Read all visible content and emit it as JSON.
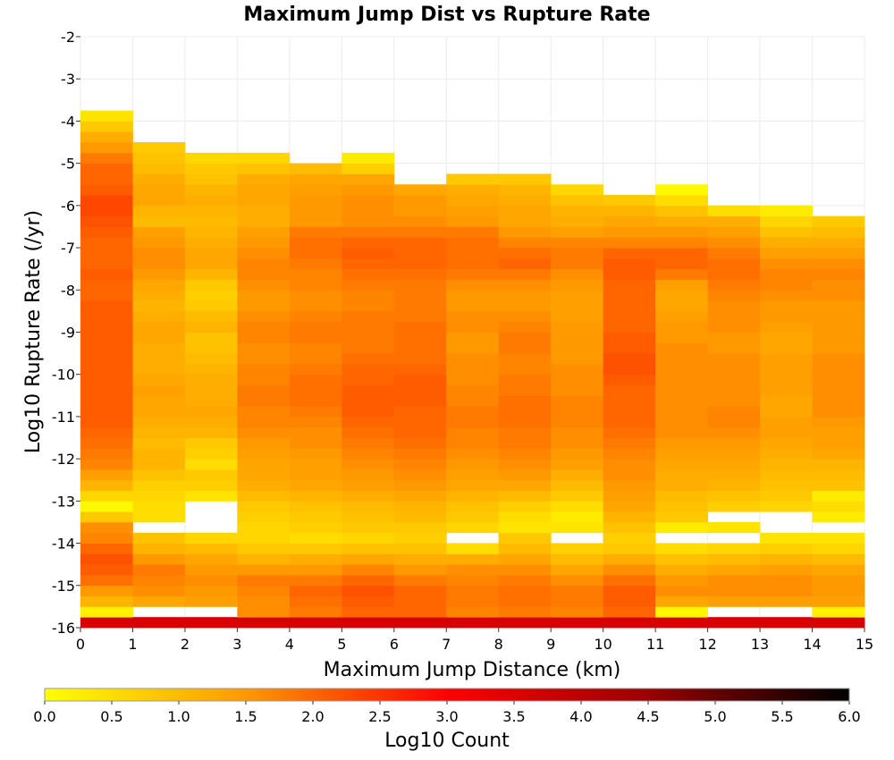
{
  "chart_data": {
    "type": "heatmap",
    "title": "Maximum Jump Dist vs Rupture Rate",
    "xlabel": "Maximum Jump Distance (km)",
    "ylabel": "Log10 Rupture Rate (/yr)",
    "xlim": [
      0,
      15
    ],
    "ylim": [
      -16,
      -2
    ],
    "x_ticks": [
      "0",
      "1",
      "2",
      "3",
      "4",
      "5",
      "6",
      "7",
      "8",
      "9",
      "10",
      "11",
      "12",
      "13",
      "14",
      "15"
    ],
    "y_ticks": [
      "-2",
      "-3",
      "-4",
      "-5",
      "-6",
      "-7",
      "-8",
      "-9",
      "-10",
      "-11",
      "-12",
      "-13",
      "-14",
      "-15",
      "-16"
    ],
    "colorbar": {
      "label": "Log10 Count",
      "range": [
        0,
        6
      ],
      "ticks": [
        "0.0",
        "0.5",
        "1.0",
        "1.5",
        "2.0",
        "2.5",
        "3.0",
        "3.5",
        "4.0",
        "4.5",
        "5.0",
        "5.5",
        "6.0"
      ],
      "colors": [
        "#ffff00",
        "#ff9900",
        "#ff0000",
        "#990000",
        "#000000"
      ]
    },
    "x_bin_width": 1,
    "y_bin_width": 0.25,
    "y_bin_start": -16,
    "columns": [
      {
        "x": 0,
        "values": [
          3.6,
          0.2,
          1.1,
          1.5,
          1.9,
          2.1,
          2.2,
          2.0,
          1.7,
          1.6,
          0.8,
          0.1,
          0.6,
          1.1,
          1.4,
          1.7,
          1.8,
          1.9,
          2.0,
          2.1,
          2.1,
          2.1,
          2.1,
          2.1,
          2.1,
          2.1,
          2.1,
          2.1,
          2.1,
          2.1,
          2.1,
          2.0,
          2.0,
          2.1,
          2.0,
          2.0,
          2.0,
          2.1,
          2.2,
          2.3,
          2.3,
          2.1,
          2.0,
          2.0,
          1.8,
          1.5,
          1.2,
          0.8,
          0.4
        ]
      },
      {
        "x": 1,
        "values": [
          3.6,
          -1,
          1.3,
          1.6,
          1.7,
          1.8,
          1.5,
          1.1,
          0.9,
          -1,
          0.5,
          0.5,
          0.6,
          0.7,
          0.9,
          1.1,
          1.1,
          1.0,
          1.1,
          1.2,
          1.3,
          1.3,
          1.4,
          1.3,
          1.2,
          1.2,
          1.2,
          1.3,
          1.3,
          1.2,
          1.1,
          1.2,
          1.3,
          1.5,
          1.6,
          1.6,
          1.5,
          1.4,
          1.0,
          1.1,
          1.3,
          1.3,
          1.2,
          1.0,
          0.9,
          0.8
        ]
      },
      {
        "x": 2,
        "values": [
          3.6,
          -1,
          1.4,
          1.5,
          1.6,
          1.5,
          1.3,
          1.0,
          0.6,
          -1,
          -1,
          -1,
          0.4,
          0.7,
          0.8,
          0.5,
          0.7,
          0.8,
          1.1,
          1.2,
          1.3,
          1.2,
          1.2,
          1.2,
          1.1,
          1.0,
          0.9,
          0.9,
          1.1,
          1.0,
          0.8,
          0.7,
          0.8,
          1.1,
          1.3,
          1.3,
          1.2,
          1.1,
          1.0,
          1.1,
          1.2,
          1.1,
          0.9,
          0.8,
          0.6
        ]
      },
      {
        "x": 3,
        "values": [
          3.6,
          1.6,
          1.6,
          1.7,
          1.8,
          1.5,
          1.1,
          0.8,
          0.6,
          0.6,
          0.7,
          0.8,
          1.0,
          1.2,
          1.3,
          1.3,
          1.4,
          1.5,
          1.6,
          1.7,
          1.7,
          1.8,
          1.8,
          1.7,
          1.7,
          1.6,
          1.6,
          1.7,
          1.7,
          1.6,
          1.5,
          1.5,
          1.6,
          1.7,
          1.7,
          1.6,
          1.5,
          1.4,
          1.2,
          1.2,
          1.3,
          1.3,
          1.2,
          0.9,
          0.6
        ]
      },
      {
        "x": 4,
        "values": [
          3.6,
          1.8,
          1.9,
          2.0,
          1.8,
          1.5,
          1.2,
          0.8,
          0.5,
          0.7,
          0.8,
          0.9,
          1.1,
          1.3,
          1.4,
          1.4,
          1.5,
          1.6,
          1.6,
          1.7,
          1.8,
          1.9,
          1.9,
          1.9,
          1.8,
          1.7,
          1.7,
          1.8,
          1.8,
          1.7,
          1.6,
          1.6,
          1.7,
          1.7,
          1.8,
          1.9,
          1.9,
          1.8,
          1.5,
          1.5,
          1.5,
          1.4,
          1.3,
          1.0
        ]
      },
      {
        "x": 5,
        "values": [
          3.6,
          2.0,
          2.1,
          2.2,
          2.0,
          1.7,
          1.3,
          0.9,
          0.6,
          0.8,
          0.9,
          1.0,
          1.2,
          1.4,
          1.5,
          1.6,
          1.7,
          1.8,
          1.9,
          2.0,
          2.1,
          2.1,
          2.1,
          2.0,
          2.0,
          1.9,
          1.8,
          1.8,
          1.8,
          1.8,
          1.7,
          1.7,
          1.8,
          1.9,
          2.0,
          2.1,
          2.0,
          1.8,
          1.6,
          1.6,
          1.6,
          1.5,
          1.3,
          0.7,
          0.3
        ]
      },
      {
        "x": 6,
        "values": [
          3.6,
          2.0,
          2.0,
          2.0,
          1.8,
          1.5,
          1.2,
          0.9,
          0.7,
          0.8,
          1.0,
          1.1,
          1.3,
          1.5,
          1.6,
          1.7,
          1.8,
          1.9,
          2.0,
          2.0,
          2.0,
          2.1,
          2.1,
          2.1,
          2.0,
          1.9,
          1.9,
          1.9,
          1.9,
          1.8,
          1.8,
          1.8,
          1.8,
          1.9,
          2.0,
          2.0,
          2.0,
          1.8,
          1.6,
          1.5,
          1.5,
          1.3
        ]
      },
      {
        "x": 7,
        "values": [
          3.6,
          1.7,
          1.8,
          1.8,
          1.7,
          1.6,
          1.2,
          0.5,
          -1,
          0.6,
          0.8,
          0.9,
          1.1,
          1.3,
          1.4,
          1.5,
          1.6,
          1.7,
          1.7,
          1.8,
          1.8,
          1.7,
          1.7,
          1.6,
          1.6,
          1.6,
          1.5,
          1.5,
          1.6,
          1.6,
          1.5,
          1.5,
          1.6,
          1.8,
          1.9,
          1.9,
          1.9,
          1.8,
          1.5,
          1.4,
          1.3,
          1.2,
          0.8
        ]
      },
      {
        "x": 8,
        "values": [
          3.6,
          1.8,
          1.9,
          1.9,
          1.8,
          1.6,
          1.3,
          1.0,
          0.8,
          0.4,
          0.5,
          0.7,
          1.0,
          1.3,
          1.5,
          1.6,
          1.7,
          1.8,
          1.8,
          1.9,
          1.9,
          1.9,
          1.8,
          1.8,
          1.7,
          1.7,
          1.8,
          1.8,
          1.7,
          1.6,
          1.5,
          1.5,
          1.6,
          1.8,
          2.0,
          1.9,
          1.7,
          1.5,
          1.3,
          1.3,
          1.2,
          1.1,
          0.8
        ]
      },
      {
        "x": 9,
        "values": [
          3.6,
          1.7,
          1.8,
          1.8,
          1.6,
          1.3,
          1.0,
          0.7,
          -1,
          0.4,
          0.3,
          0.5,
          0.8,
          1.0,
          1.2,
          1.4,
          1.5,
          1.6,
          1.6,
          1.7,
          1.7,
          1.7,
          1.6,
          1.6,
          1.6,
          1.5,
          1.5,
          1.5,
          1.5,
          1.4,
          1.4,
          1.4,
          1.5,
          1.6,
          1.8,
          1.8,
          1.7,
          1.4,
          1.2,
          1.1,
          0.9,
          0.6
        ]
      },
      {
        "x": 10,
        "values": [
          3.6,
          2.0,
          2.1,
          2.1,
          1.9,
          1.6,
          1.2,
          0.8,
          0.7,
          0.9,
          1.1,
          1.3,
          1.4,
          1.5,
          1.6,
          1.6,
          1.7,
          1.8,
          1.9,
          2.0,
          2.0,
          2.0,
          2.0,
          2.1,
          2.2,
          2.2,
          2.1,
          2.1,
          2.0,
          2.0,
          2.0,
          2.0,
          2.0,
          2.1,
          2.1,
          2.0,
          1.7,
          1.5,
          1.3,
          1.1,
          0.8
        ]
      },
      {
        "x": 11,
        "values": [
          3.6,
          0.1,
          1.3,
          1.6,
          1.5,
          1.2,
          0.9,
          0.5,
          -1,
          0.3,
          0.8,
          0.9,
          1.0,
          1.2,
          1.2,
          1.3,
          1.4,
          1.5,
          1.6,
          1.6,
          1.6,
          1.6,
          1.6,
          1.6,
          1.6,
          1.6,
          1.6,
          1.5,
          1.5,
          1.4,
          1.3,
          1.3,
          1.4,
          1.8,
          2.0,
          2.0,
          1.7,
          1.5,
          1.2,
          0.9,
          0.5,
          0.1
        ]
      },
      {
        "x": 12,
        "values": [
          3.6,
          -1,
          1.4,
          1.6,
          1.6,
          1.3,
          1.0,
          0.6,
          -1,
          0.4,
          -1,
          0.7,
          0.9,
          1.1,
          1.2,
          1.3,
          1.4,
          1.5,
          1.6,
          1.7,
          1.7,
          1.6,
          1.6,
          1.6,
          1.6,
          1.6,
          1.5,
          1.5,
          1.6,
          1.6,
          1.6,
          1.7,
          1.8,
          1.9,
          1.9,
          1.8,
          1.6,
          1.4,
          1.2,
          0.5
        ]
      },
      {
        "x": 13,
        "values": [
          3.6,
          -1,
          1.4,
          1.6,
          1.6,
          1.4,
          1.1,
          0.7,
          0.4,
          -1,
          -1,
          0.6,
          0.8,
          0.9,
          1.0,
          1.1,
          1.2,
          1.3,
          1.4,
          1.4,
          1.3,
          1.3,
          1.4,
          1.4,
          1.4,
          1.4,
          1.3,
          1.3,
          1.4,
          1.5,
          1.5,
          1.6,
          1.7,
          1.7,
          1.6,
          1.4,
          1.2,
          0.9,
          0.6,
          0.3
        ]
      },
      {
        "x": 14,
        "values": [
          3.6,
          0.2,
          1.4,
          1.5,
          1.5,
          1.3,
          1.0,
          0.6,
          0.4,
          -1,
          0.3,
          0.5,
          0.3,
          0.9,
          1.0,
          1.1,
          1.3,
          1.4,
          1.4,
          1.5,
          1.6,
          1.6,
          1.6,
          1.6,
          1.6,
          1.6,
          1.5,
          1.5,
          1.5,
          1.5,
          1.5,
          1.6,
          1.6,
          1.7,
          1.6,
          1.4,
          1.2,
          1.0,
          0.8
        ]
      }
    ]
  }
}
